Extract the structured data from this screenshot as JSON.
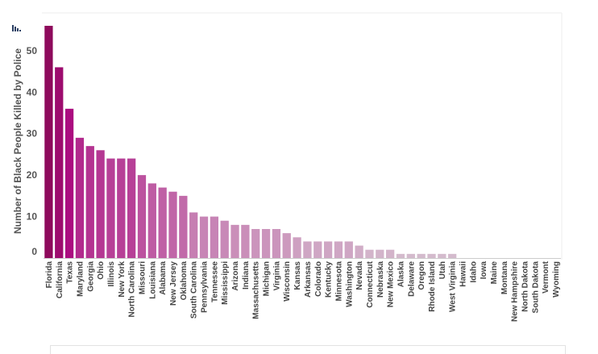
{
  "chart_data": {
    "type": "bar",
    "ylabel": "Number of Black People Killed by Police",
    "ylim": [
      0,
      56
    ],
    "yticks": [
      0,
      10,
      20,
      30,
      40,
      50
    ],
    "grid": false,
    "colors": {
      "high": "#8e0a5c",
      "mid": "#ab0d80",
      "low": "#d7c6d2",
      "axis": "#cccccc"
    },
    "categories": [
      "Florida",
      "California",
      "Texas",
      "Maryland",
      "Georgia",
      "Ohio",
      "Illinois",
      "New York",
      "North Carolina",
      "Missouri",
      "Louisiana",
      "Alabama",
      "New Jersey",
      "Oklahoma",
      "South Carolina",
      "Pennsylvania",
      "Tennessee",
      "Mississippi",
      "Arizona",
      "Indiana",
      "Massachusetts",
      "Michigan",
      "Virginia",
      "Wisconsin",
      "Kansas",
      "Arkansas",
      "Colorado",
      "Kentucky",
      "Minnesota",
      "Washington",
      "Nevada",
      "Connecticut",
      "Nebraska",
      "New Mexico",
      "Alaska",
      "Delaware",
      "Oregon",
      "Rhode Island",
      "Utah",
      "West Virginia",
      "Hawaii",
      "Idaho",
      "Iowa",
      "Maine",
      "Montana",
      "New Hampshire",
      "North Dakota",
      "South Dakota",
      "Vermont",
      "Wyoming"
    ],
    "values": [
      56,
      46,
      36,
      29,
      27,
      26,
      24,
      24,
      24,
      20,
      18,
      17,
      16,
      15,
      11,
      10,
      10,
      9,
      8,
      8,
      7,
      7,
      7,
      6,
      5,
      4,
      4,
      4,
      4,
      4,
      3,
      2,
      2,
      2,
      1,
      1,
      1,
      1,
      1,
      1,
      0,
      0,
      0,
      0,
      0,
      0,
      0,
      0,
      0,
      0
    ]
  }
}
